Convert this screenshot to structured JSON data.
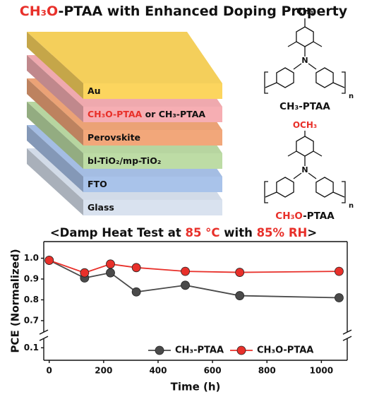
{
  "title": {
    "parts": [
      {
        "text": "CH₃O",
        "color": "#e8302a"
      },
      {
        "text": "-PTAA with Enhanced Doping Property"
      }
    ]
  },
  "layers": [
    {
      "parts": [
        {
          "text": "Au"
        }
      ],
      "color": "#fcd55e"
    },
    {
      "parts": [
        {
          "text": "CH₃O-PTAA",
          "color": "#e8302a"
        },
        {
          "text": " or CH₃-PTAA"
        }
      ],
      "color": "#f6aeb3"
    },
    {
      "parts": [
        {
          "text": "Perovskite"
        }
      ],
      "color": "#f2a77a"
    },
    {
      "parts": [
        {
          "text": "bl-TiO₂/mp-TiO₂"
        }
      ],
      "color": "#bddca5"
    },
    {
      "parts": [
        {
          "text": "FTO"
        }
      ],
      "color": "#a9c3ea"
    },
    {
      "parts": [
        {
          "text": "Glass"
        }
      ],
      "color": "#d9e2ef"
    }
  ],
  "structures": [
    {
      "substituent": {
        "parts": [
          {
            "text": "CH₃"
          }
        ]
      },
      "repeat": "n",
      "name": {
        "parts": [
          {
            "text": "CH₃-PTAA"
          }
        ]
      }
    },
    {
      "substituent": {
        "parts": [
          {
            "text": "OCH₃",
            "color": "#e8302a"
          }
        ]
      },
      "repeat": "n",
      "name": {
        "parts": [
          {
            "text": "CH₃O",
            "color": "#e8302a"
          },
          {
            "text": "-PTAA"
          }
        ]
      }
    }
  ],
  "chart_data": {
    "type": "line",
    "title": {
      "parts": [
        {
          "text": "<Damp Heat Test at "
        },
        {
          "text": "85 °C",
          "color": "#e8302a"
        },
        {
          "text": " with "
        },
        {
          "text": "85% RH",
          "color": "#e8302a"
        },
        {
          "text": ">"
        }
      ]
    },
    "x_label": "Time (h)",
    "y_label": "PCE (Normalized)",
    "x": [
      0,
      130,
      225,
      320,
      500,
      700,
      1065
    ],
    "series": [
      {
        "name": "CH₃-PTAA",
        "color": "#4a4a4a",
        "values": [
          0.99,
          0.905,
          0.93,
          0.838,
          0.87,
          0.82,
          0.81
        ]
      },
      {
        "name": "CH₃O-PTAA",
        "color": "#e8302a",
        "values": [
          0.99,
          0.93,
          0.972,
          0.955,
          0.937,
          0.932,
          0.937
        ]
      }
    ],
    "xlim": [
      -20,
      1095
    ],
    "xticks": [
      0,
      200,
      400,
      600,
      800,
      1000
    ],
    "ylim": [
      0.04,
      1.08
    ],
    "ybreak": [
      0.145,
      0.645
    ],
    "yticks": [
      0.1,
      0.7,
      0.8,
      0.9,
      {
        "value": 1,
        "label": "1.0"
      }
    ],
    "legend": "lower right"
  }
}
